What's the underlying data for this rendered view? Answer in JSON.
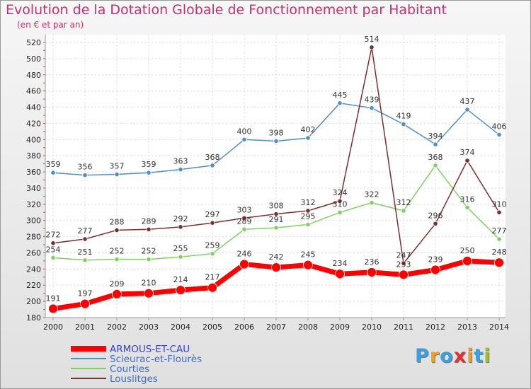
{
  "header": {
    "title": "Evolution de la Dotation Globale de Fonctionnement par Habitant",
    "subtitle": "(en € et par an)"
  },
  "logo": {
    "text": "Proxiti",
    "colors": [
      "#3aa0e0",
      "#f0a020",
      "#3aa0e0",
      "#e03030",
      "#f0a020",
      "#3aa0e0",
      "#a0c020"
    ]
  },
  "chart_data": {
    "type": "line",
    "x": [
      "2000",
      "2001",
      "2002",
      "2003",
      "2004",
      "2005",
      "2006",
      "2007",
      "2008",
      "2009",
      "2010",
      "2011",
      "2012",
      "2013",
      "2014"
    ],
    "ylim": [
      180,
      520
    ],
    "yticks": [
      180,
      200,
      220,
      240,
      260,
      280,
      300,
      320,
      340,
      360,
      380,
      400,
      420,
      440,
      460,
      480,
      500,
      520
    ],
    "grid": true,
    "legend": "bottom-left",
    "series": [
      {
        "name": "ARMOUS-ET-CAU",
        "color": "#ff0000",
        "values": [
          191,
          197,
          209,
          210,
          214,
          217,
          246,
          242,
          245,
          234,
          236,
          233,
          239,
          250,
          248
        ]
      },
      {
        "name": "Scieurac-et-Flourès",
        "color": "#4f8fc8",
        "values": [
          359,
          356,
          357,
          359,
          363,
          368,
          400,
          398,
          402,
          445,
          439,
          419,
          394,
          437,
          406
        ]
      },
      {
        "name": "Courties",
        "color": "#80d060",
        "values": [
          254,
          251,
          252,
          252,
          255,
          259,
          289,
          291,
          295,
          310,
          322,
          312,
          368,
          316,
          277
        ]
      },
      {
        "name": "Louslitges",
        "color": "#7a2f2f",
        "values": [
          272,
          277,
          288,
          289,
          292,
          297,
          303,
          308,
          312,
          324,
          514,
          247,
          296,
          374,
          310
        ]
      }
    ]
  }
}
